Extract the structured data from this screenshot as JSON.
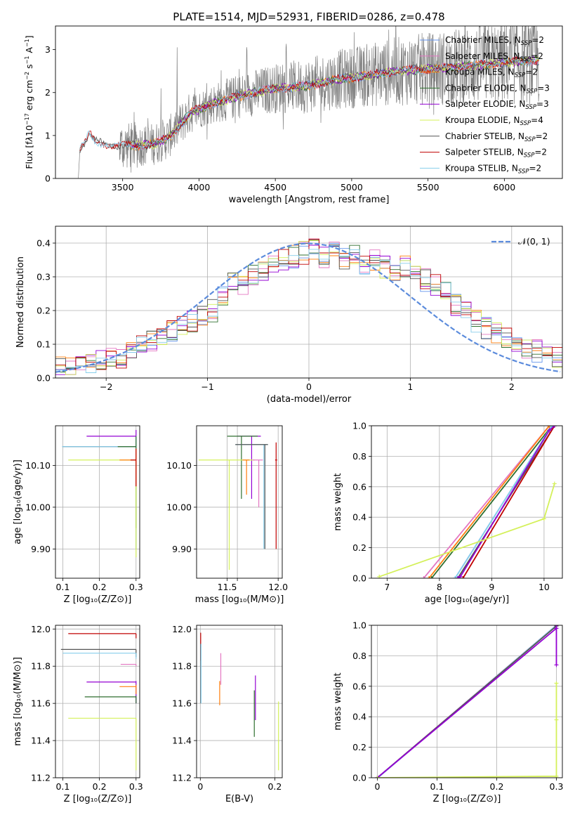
{
  "title": "PLATE=1514, MJD=52931, FIBERID=0286, z=0.478",
  "colors": {
    "Chabrier MILES": "#6495ed",
    "Salpeter MILES": "#e377c2",
    "Kroupa MILES": "#ff7f0e",
    "Chabrier ELODIE": "#2f6f2f",
    "Salpeter ELODIE": "#9400d3",
    "Kroupa ELODIE": "#d4f05a",
    "Chabrier STELIB": "#555555",
    "Salpeter STELIB": "#c00000",
    "Kroupa STELIB": "#87ceeb",
    "gaussian": "#5b8bdc",
    "data": "#808080"
  },
  "chart_data": [
    {
      "id": "spectrum",
      "type": "line",
      "xlabel": "wavelength [Angstrom, rest frame]",
      "ylabel_html": "Flux [f<tspan font-style='italic'>λ</tspan>10<tspan dy='-5' font-size='8'>−17</tspan><tspan dy='5'> erg cm</tspan><tspan dy='-5' font-size='8'>−2</tspan><tspan dy='5'> s</tspan><tspan dy='-5' font-size='8'>−1</tspan><tspan dy='5'> A</tspan><tspan dy='-5' font-size='8'>−1</tspan><tspan dy='5'>]</tspan>",
      "xlim": [
        3060,
        6380
      ],
      "ylim": [
        0,
        3.55
      ],
      "xticks": [
        3500,
        4000,
        4500,
        5000,
        5500,
        6000
      ],
      "yticks": [
        0,
        1,
        2,
        3
      ],
      "legend": [
        {
          "label": "Chabrier MILES, N",
          "sub": "SSP",
          "tail": "=2",
          "color": "Chabrier MILES"
        },
        {
          "label": "Salpeter MILES, N",
          "sub": "SSP",
          "tail": "=2",
          "color": "Salpeter MILES"
        },
        {
          "label": "Kroupa MILES, N",
          "sub": "SSP",
          "tail": "=2",
          "color": "Kroupa MILES"
        },
        {
          "label": "Chabrier ELODIE, N",
          "sub": "SSP",
          "tail": "=3",
          "color": "Chabrier ELODIE"
        },
        {
          "label": "Salpeter ELODIE, N",
          "sub": "SSP",
          "tail": "=3",
          "color": "Salpeter ELODIE"
        },
        {
          "label": "Kroupa ELODIE, N",
          "sub": "SSP",
          "tail": "=4",
          "color": "Kroupa ELODIE"
        },
        {
          "label": "Chabrier STELIB, N",
          "sub": "SSP",
          "tail": "=2",
          "color": "Chabrier STELIB"
        },
        {
          "label": "Salpeter STELIB, N",
          "sub": "SSP",
          "tail": "=2",
          "color": "Salpeter STELIB"
        },
        {
          "label": "Kroupa STELIB, N",
          "sub": "SSP",
          "tail": "=2",
          "color": "Kroupa STELIB"
        }
      ],
      "continuum": [
        [
          3210,
          0.0
        ],
        [
          3220,
          0.7
        ],
        [
          3260,
          0.85
        ],
        [
          3280,
          1.05
        ],
        [
          3320,
          0.85
        ],
        [
          3500,
          0.75
        ],
        [
          3700,
          0.8
        ],
        [
          3800,
          0.95
        ],
        [
          3950,
          1.55
        ],
        [
          4100,
          1.75
        ],
        [
          4300,
          1.95
        ],
        [
          4500,
          2.1
        ],
        [
          4700,
          2.15
        ],
        [
          4900,
          2.3
        ],
        [
          5100,
          2.4
        ],
        [
          5300,
          2.5
        ],
        [
          5500,
          2.55
        ],
        [
          5700,
          2.6
        ],
        [
          6000,
          2.7
        ],
        [
          6200,
          2.75
        ]
      ]
    },
    {
      "id": "residuals",
      "type": "histogram",
      "xlabel": "(data-model)/error",
      "ylabel": "Normed distribution",
      "xlim": [
        -2.5,
        2.5
      ],
      "ylim": [
        0,
        0.45
      ],
      "xticks": [
        -2,
        -1,
        0,
        1,
        2
      ],
      "yticks": [
        0.0,
        0.1,
        0.2,
        0.3,
        0.4
      ],
      "legend_label": "𝒩(0, 1)",
      "bin_edges_start": -2.5,
      "bin_width": 0.1,
      "base_hist": [
        0.03,
        0.03,
        0.04,
        0.05,
        0.05,
        0.06,
        0.06,
        0.08,
        0.1,
        0.11,
        0.13,
        0.14,
        0.16,
        0.17,
        0.19,
        0.2,
        0.25,
        0.29,
        0.28,
        0.3,
        0.32,
        0.34,
        0.35,
        0.36,
        0.37,
        0.38,
        0.36,
        0.37,
        0.35,
        0.36,
        0.34,
        0.35,
        0.33,
        0.32,
        0.33,
        0.3,
        0.29,
        0.28,
        0.25,
        0.22,
        0.2,
        0.17,
        0.15,
        0.13,
        0.12,
        0.1,
        0.09,
        0.08,
        0.07,
        0.06
      ]
    },
    {
      "id": "age-vs-Z",
      "type": "errorbar",
      "xlabel": "Z [log₁₀(Z/Z⊙)]",
      "ylabel": "age  [log₁₀(age/yr)]",
      "xlim": [
        0.08,
        0.31
      ],
      "ylim": [
        9.83,
        10.195
      ],
      "xticks": [
        0.1,
        0.2,
        0.3
      ],
      "yticks": [
        9.9,
        10.0,
        10.1
      ],
      "points": [
        {
          "x": 0.3,
          "y": 10.17,
          "xlo": 0.165,
          "ylo": 10.12,
          "yhi": 10.185,
          "color": "Salpeter ELODIE"
        },
        {
          "x": 0.3,
          "y": 10.145,
          "xlo": 0.1,
          "ylo": 9.9,
          "yhi": 10.17,
          "color": "Chabrier STELIB"
        },
        {
          "x": 0.3,
          "y": 10.145,
          "xlo": 0.098,
          "ylo": 9.9,
          "yhi": 10.17,
          "color": "Kroupa STELIB"
        },
        {
          "x": 0.3,
          "y": 10.145,
          "xlo": 0.25,
          "ylo": 9.95,
          "yhi": 10.17,
          "color": "Chabrier ELODIE"
        },
        {
          "x": 0.3,
          "y": 10.113,
          "xlo": 0.115,
          "ylo": 9.88,
          "yhi": 10.14,
          "color": "Kroupa ELODIE"
        },
        {
          "x": 0.3,
          "y": 10.113,
          "xlo": 0.255,
          "ylo": 10.05,
          "yhi": 10.14,
          "color": "Kroupa MILES"
        },
        {
          "x": 0.3,
          "y": 10.113,
          "xlo": 0.285,
          "ylo": 10.05,
          "yhi": 10.14,
          "color": "Salpeter STELIB"
        }
      ]
    },
    {
      "id": "age-vs-mass",
      "type": "errorbar",
      "xlabel": "mass [log₁₀(M/M⊙)]",
      "ylabel": "",
      "xlim": [
        11.2,
        12.04
      ],
      "ylim": [
        9.83,
        10.195
      ],
      "xticks": [
        11.5,
        11.6,
        12.0
      ],
      "xticklabels": [
        "11.5",
        "",
        "12.0"
      ],
      "yticks": [
        9.9,
        10.0,
        10.1
      ],
      "points": [
        {
          "x": 11.74,
          "y": 10.17,
          "xlo": 11.6,
          "xhi": 11.83,
          "ylo": 10.02,
          "yhi": 10.17,
          "color": "Salpeter ELODIE"
        },
        {
          "x": 11.64,
          "y": 10.17,
          "xlo": 11.5,
          "xhi": 11.8,
          "ylo": 10.02,
          "yhi": 10.17,
          "color": "Chabrier ELODIE"
        },
        {
          "x": 11.86,
          "y": 10.15,
          "xlo": 11.58,
          "xhi": 11.9,
          "ylo": 9.9,
          "yhi": 10.15,
          "color": "Kroupa STELIB"
        },
        {
          "x": 11.87,
          "y": 10.15,
          "xlo": 11.58,
          "xhi": 11.9,
          "ylo": 9.9,
          "yhi": 10.15,
          "color": "Chabrier STELIB"
        },
        {
          "x": 11.52,
          "y": 10.113,
          "xlo": 11.22,
          "xhi": 11.77,
          "ylo": 9.85,
          "yhi": 10.113,
          "color": "Kroupa ELODIE"
        },
        {
          "x": 11.69,
          "y": 10.113,
          "xlo": 11.65,
          "xhi": 11.72,
          "ylo": 10.03,
          "yhi": 10.113,
          "color": "Kroupa MILES"
        },
        {
          "x": 11.81,
          "y": 10.113,
          "xlo": 11.75,
          "xhi": 11.85,
          "ylo": 10.0,
          "yhi": 10.113,
          "color": "Salpeter MILES"
        },
        {
          "x": 11.98,
          "y": 10.113,
          "xlo": 11.97,
          "xhi": 11.99,
          "ylo": 9.9,
          "yhi": 10.155,
          "color": "Salpeter STELIB"
        }
      ]
    },
    {
      "id": "massweight-vs-age",
      "type": "line",
      "xlabel": "age  [log₁₀(age/yr)]",
      "ylabel": "mass weight",
      "xlim": [
        6.7,
        10.35
      ],
      "ylim": [
        0,
        1
      ],
      "xticks": [
        7,
        8,
        9,
        10
      ],
      "yticks": [
        0.0,
        0.2,
        0.4,
        0.6,
        0.8,
        1.0
      ],
      "series": [
        {
          "color": "Salpeter MILES",
          "points": [
            [
              7.7,
              0
            ],
            [
              10.1,
              1
            ]
          ]
        },
        {
          "color": "Kroupa MILES",
          "points": [
            [
              7.8,
              0
            ],
            [
              10.1,
              1
            ]
          ]
        },
        {
          "color": "Chabrier ELODIE",
          "points": [
            [
              7.85,
              0
            ],
            [
              10.15,
              1
            ]
          ]
        },
        {
          "color": "Chabrier MILES",
          "points": [
            [
              8.3,
              0
            ],
            [
              10.15,
              1
            ]
          ]
        },
        {
          "color": "Kroupa STELIB",
          "points": [
            [
              8.3,
              0
            ],
            [
              10.15,
              1
            ]
          ]
        },
        {
          "color": "Chabrier STELIB",
          "points": [
            [
              8.35,
              0
            ],
            [
              10.2,
              1
            ]
          ]
        },
        {
          "color": "Salpeter STELIB",
          "points": [
            [
              8.45,
              0
            ],
            [
              10.2,
              1
            ]
          ]
        },
        {
          "color": "Salpeter ELODIE",
          "points": [
            [
              8.35,
              0
            ],
            [
              8.4,
              0.01
            ],
            [
              10.1,
              0.97
            ],
            [
              10.2,
              1
            ]
          ]
        },
        {
          "color": "Kroupa ELODIE",
          "points": [
            [
              6.85,
              0.01
            ],
            [
              10.0,
              0.39
            ],
            [
              10.2,
              0.62
            ]
          ]
        }
      ]
    },
    {
      "id": "mass-vs-Z",
      "type": "errorbar",
      "xlabel": "Z [log₁₀(Z/Z⊙)]",
      "ylabel": "mass [log₁₀(M/M⊙)]",
      "xlim": [
        0.08,
        0.31
      ],
      "ylim": [
        11.2,
        12.02
      ],
      "xticks": [
        0.1,
        0.2,
        0.3
      ],
      "yticks": [
        11.2,
        11.4,
        11.6,
        11.8,
        12.0
      ],
      "points": [
        {
          "x": 0.3,
          "y": 11.975,
          "xlo": 0.115,
          "ylo": 11.95,
          "yhi": 11.975,
          "color": "Salpeter STELIB"
        },
        {
          "x": 0.3,
          "y": 11.89,
          "xlo": 0.095,
          "ylo": 11.85,
          "yhi": 11.89,
          "color": "Chabrier STELIB"
        },
        {
          "x": 0.3,
          "y": 11.87,
          "xlo": 0.1,
          "ylo": 11.84,
          "yhi": 11.87,
          "color": "Kroupa STELIB"
        },
        {
          "x": 0.3,
          "y": 11.81,
          "xlo": 0.258,
          "ylo": 11.8,
          "yhi": 11.81,
          "color": "Salpeter MILES"
        },
        {
          "x": 0.3,
          "y": 11.715,
          "xlo": 0.165,
          "ylo": 11.6,
          "yhi": 11.72,
          "color": "Salpeter ELODIE"
        },
        {
          "x": 0.3,
          "y": 11.69,
          "xlo": 0.255,
          "ylo": 11.65,
          "yhi": 11.7,
          "color": "Kroupa MILES"
        },
        {
          "x": 0.3,
          "y": 11.635,
          "xlo": 0.16,
          "ylo": 11.6,
          "yhi": 11.64,
          "color": "Chabrier ELODIE"
        },
        {
          "x": 0.3,
          "y": 11.52,
          "xlo": 0.115,
          "ylo": 11.24,
          "yhi": 11.52,
          "color": "Kroupa ELODIE"
        }
      ]
    },
    {
      "id": "mass-vs-EBV",
      "type": "errorbar",
      "xlabel": "E(B-V)",
      "ylabel": "",
      "xlim": [
        -0.01,
        0.22
      ],
      "ylim": [
        11.2,
        12.02
      ],
      "xticks": [
        0.0,
        0.2
      ],
      "yticks": [
        11.2,
        11.4,
        11.6,
        11.8,
        12.0
      ],
      "points": [
        {
          "x": 0.001,
          "y": 11.9,
          "ylo": 11.83,
          "yhi": 11.98,
          "color": "Salpeter STELIB"
        },
        {
          "x": 0.001,
          "y": 11.87,
          "ylo": 11.6,
          "yhi": 11.92,
          "color": "Chabrier STELIB"
        },
        {
          "x": 0.002,
          "y": 11.87,
          "ylo": 11.6,
          "yhi": 11.92,
          "color": "Kroupa STELIB"
        },
        {
          "x": 0.055,
          "y": 11.81,
          "ylo": 11.7,
          "yhi": 11.87,
          "color": "Salpeter MILES"
        },
        {
          "x": 0.052,
          "y": 11.69,
          "ylo": 11.59,
          "yhi": 11.72,
          "color": "Kroupa MILES"
        },
        {
          "x": 0.148,
          "y": 11.715,
          "ylo": 11.51,
          "yhi": 11.75,
          "color": "Salpeter ELODIE"
        },
        {
          "x": 0.145,
          "y": 11.635,
          "ylo": 11.42,
          "yhi": 11.67,
          "color": "Chabrier ELODIE"
        },
        {
          "x": 0.21,
          "y": 11.52,
          "ylo": 11.24,
          "yhi": 11.61,
          "color": "Kroupa ELODIE"
        }
      ]
    },
    {
      "id": "massweight-vs-Z",
      "type": "line",
      "xlabel": "Z [log₁₀(Z/Z⊙)]",
      "ylabel": "mass weight",
      "xlim": [
        -0.01,
        0.31
      ],
      "ylim": [
        0,
        1
      ],
      "xticks": [
        0.0,
        0.1,
        0.2,
        0.3
      ],
      "yticks": [
        0.0,
        0.2,
        0.4,
        0.6,
        0.8,
        1.0
      ],
      "series": [
        {
          "color": "Chabrier MILES",
          "points": [
            [
              0.0,
              0
            ],
            [
              0.3,
              1
            ]
          ]
        },
        {
          "color": "Salpeter MILES",
          "points": [
            [
              0.0,
              0
            ],
            [
              0.3,
              1
            ]
          ]
        },
        {
          "color": "Kroupa STELIB",
          "points": [
            [
              0.001,
              0
            ],
            [
              0.3,
              1
            ]
          ]
        },
        {
          "color": "Chabrier STELIB",
          "points": [
            [
              0.0,
              0
            ],
            [
              0.3,
              0.995
            ]
          ]
        },
        {
          "color": "Salpeter ELODIE",
          "points": [
            [
              0.0,
              0
            ],
            [
              0.3,
              0.98
            ],
            [
              0.3,
              0.74
            ],
            [
              0.3,
              1
            ]
          ]
        },
        {
          "color": "Kroupa ELODIE",
          "points": [
            [
              0.0,
              0.0
            ],
            [
              0.3,
              0.01
            ],
            [
              0.3,
              0.62
            ],
            [
              0.3,
              0.38
            ],
            [
              0.3,
              0.0
            ]
          ]
        }
      ]
    }
  ]
}
